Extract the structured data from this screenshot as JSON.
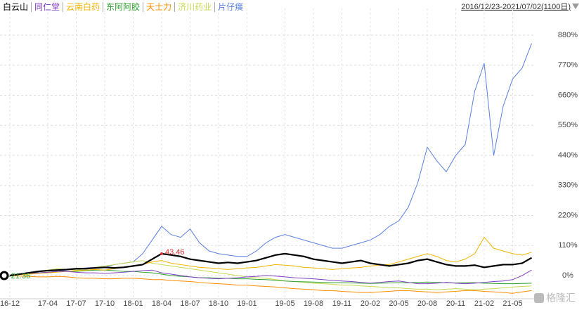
{
  "chart_data": {
    "type": "line",
    "range": "2016/12/23-2021/07/02(1100日)",
    "watermark": "格隆汇",
    "annotations": [
      {
        "text": "43.46",
        "color": "#e03030"
      },
      {
        "text": "-21.36",
        "color": "#2ca02c"
      }
    ],
    "categories": [
      "16-12",
      null,
      null,
      null,
      "17-04",
      null,
      null,
      "17-07",
      null,
      null,
      "17-10",
      null,
      null,
      "18-01",
      null,
      null,
      "18-04",
      null,
      null,
      "18-07",
      null,
      null,
      "18-10",
      null,
      null,
      "19-01",
      null,
      null,
      null,
      "19-05",
      null,
      null,
      "19-08",
      null,
      null,
      "19-11",
      null,
      null,
      "20-02",
      null,
      null,
      "20-05",
      null,
      null,
      "20-08",
      null,
      null,
      "20-11",
      null,
      null,
      "21-02",
      null,
      null,
      "21-05",
      null,
      null
    ],
    "ylim": [
      -85,
      978
    ],
    "yticks": [
      {
        "value": 0,
        "label": "0%"
      },
      {
        "value": 110,
        "label": "110%"
      },
      {
        "value": 220,
        "label": "220%"
      },
      {
        "value": 330,
        "label": "330%"
      },
      {
        "value": 440,
        "label": "440%"
      },
      {
        "value": 550,
        "label": "550%"
      },
      {
        "value": 660,
        "label": "660%"
      },
      {
        "value": 770,
        "label": "770%"
      },
      {
        "value": 880,
        "label": "880%"
      }
    ],
    "grid": true,
    "series": [
      {
        "name": "白云山",
        "color": "#000000",
        "values": [
          0,
          5,
          10,
          15,
          18,
          20,
          22,
          25,
          25,
          28,
          30,
          28,
          30,
          35,
          40,
          60,
          80,
          75,
          70,
          60,
          55,
          50,
          45,
          48,
          45,
          50,
          55,
          65,
          75,
          80,
          75,
          70,
          60,
          55,
          50,
          45,
          50,
          55,
          45,
          40,
          35,
          40,
          45,
          55,
          60,
          50,
          40,
          35,
          35,
          38,
          30,
          35,
          40,
          40,
          45,
          65
        ]
      },
      {
        "name": "同仁堂",
        "color": "#8040c0",
        "values": [
          0,
          5,
          8,
          10,
          12,
          15,
          15,
          12,
          10,
          10,
          8,
          10,
          12,
          15,
          18,
          20,
          10,
          5,
          0,
          -5,
          -8,
          -10,
          -12,
          -10,
          -8,
          -5,
          -3,
          0,
          -2,
          -5,
          -8,
          -10,
          -12,
          -15,
          -18,
          -20,
          -22,
          -25,
          -28,
          -25,
          -22,
          -20,
          -25,
          -30,
          -30,
          -28,
          -25,
          -28,
          -30,
          -28,
          -25,
          -22,
          -20,
          -15,
          0,
          20
        ]
      },
      {
        "name": "云南白药",
        "color": "#f0b400",
        "values": [
          0,
          3,
          5,
          8,
          10,
          12,
          15,
          18,
          20,
          22,
          20,
          25,
          30,
          35,
          40,
          50,
          55,
          45,
          40,
          35,
          30,
          28,
          25,
          22,
          25,
          28,
          30,
          35,
          40,
          38,
          35,
          30,
          28,
          25,
          22,
          25,
          28,
          30,
          35,
          38,
          40,
          50,
          60,
          70,
          80,
          70,
          55,
          50,
          60,
          80,
          140,
          100,
          90,
          80,
          75,
          85
        ]
      },
      {
        "name": "东阿阿胶",
        "color": "#2ca02c",
        "values": [
          0,
          5,
          10,
          10,
          12,
          15,
          15,
          15,
          18,
          20,
          20,
          18,
          15,
          15,
          12,
          10,
          5,
          0,
          -3,
          -5,
          -8,
          -8,
          -10,
          -10,
          -12,
          -12,
          -14,
          -15,
          -17,
          -20,
          -22,
          -23,
          -24,
          -25,
          -26,
          -26,
          -27,
          -28,
          -29,
          -28,
          -27,
          -26,
          -26,
          -25,
          -24,
          -25,
          -26,
          -27,
          -26,
          -26,
          -28,
          -29,
          -30,
          -30,
          -29,
          -28
        ]
      },
      {
        "name": "天士力",
        "color": "#ff8c00",
        "values": [
          0,
          -2,
          -3,
          -5,
          -5,
          -3,
          -5,
          -8,
          -10,
          -10,
          -12,
          -12,
          -10,
          -10,
          -12,
          -15,
          -15,
          -18,
          -20,
          -22,
          -25,
          -28,
          -30,
          -32,
          -35,
          -35,
          -38,
          -40,
          -42,
          -45,
          -48,
          -50,
          -52,
          -55,
          -55,
          -58,
          -60,
          -62,
          -62,
          -60,
          -58,
          -55,
          -55,
          -58,
          -60,
          -62,
          -60,
          -58,
          -55,
          -55,
          -58,
          -60,
          -62,
          -65,
          -60,
          -55
        ]
      },
      {
        "name": "济川药业",
        "color": "#c8d850",
        "values": [
          0,
          5,
          10,
          15,
          20,
          25,
          22,
          20,
          25,
          30,
          35,
          40,
          45,
          50,
          55,
          45,
          40,
          35,
          30,
          25,
          20,
          15,
          10,
          5,
          0,
          -5,
          -8,
          -10,
          -15,
          -20,
          -22,
          -25,
          -28,
          -30,
          -32,
          -35,
          -35,
          -38,
          -40,
          -42,
          -45,
          -45,
          -48,
          -50,
          -50,
          -52,
          -50,
          -48,
          -50,
          -52,
          -50,
          -48,
          -45,
          -42,
          -40,
          -38
        ]
      },
      {
        "name": "片仔癀",
        "color": "#5a7fe0",
        "values": [
          0,
          5,
          8,
          10,
          10,
          15,
          20,
          25,
          28,
          30,
          30,
          40,
          45,
          50,
          80,
          130,
          180,
          150,
          140,
          170,
          120,
          90,
          80,
          75,
          70,
          70,
          90,
          120,
          140,
          150,
          140,
          130,
          120,
          110,
          100,
          100,
          110,
          120,
          130,
          150,
          180,
          200,
          250,
          340,
          470,
          420,
          380,
          440,
          480,
          675,
          777,
          440,
          620,
          720,
          760,
          850
        ]
      }
    ]
  }
}
